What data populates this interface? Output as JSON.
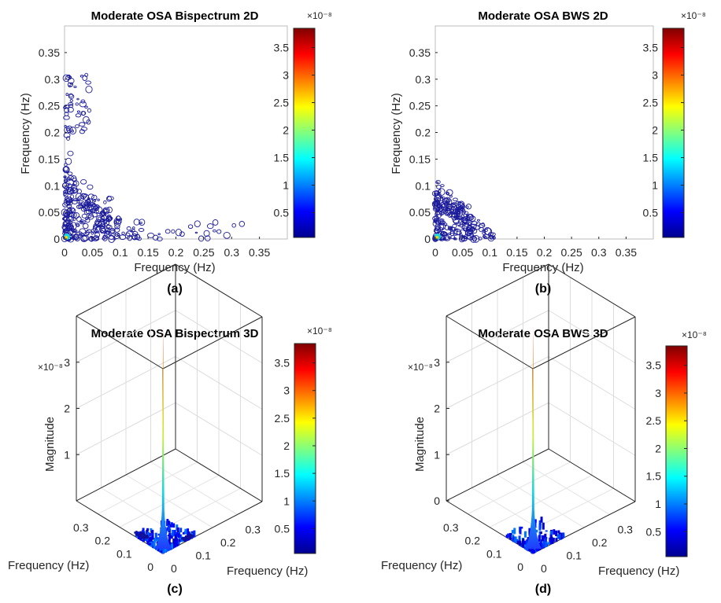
{
  "chart_data": [
    {
      "id": "a",
      "type": "heatmap",
      "variant": "contour-2d",
      "title": "Moderate OSA Bispectrum 2D",
      "caption": "(a)",
      "xlabel": "Frequency (Hz)",
      "ylabel": "Frequency (Hz)",
      "xlim": [
        0,
        0.4
      ],
      "ylim": [
        0,
        0.4
      ],
      "xticks": [
        "0",
        "0.05",
        "0.1",
        "0.15",
        "0.2",
        "0.25",
        "0.3",
        "0.35"
      ],
      "yticks": [
        "0",
        "0.05",
        "0.1",
        "0.15",
        "0.2",
        "0.25",
        "0.3",
        "0.35"
      ],
      "colorbar": {
        "ticks": [
          "0.5",
          "1",
          "1.5",
          "2",
          "2.5",
          "3",
          "3.5"
        ],
        "exponent": "×10⁻⁸",
        "range": [
          0.05,
          3.85
        ]
      },
      "regions": [
        {
          "shape": "corner",
          "x": [
            0,
            0.14
          ],
          "y": [
            0,
            0.135
          ],
          "density": "high"
        },
        {
          "shape": "strip",
          "x": [
            0,
            0.012
          ],
          "y": [
            0,
            0.315
          ],
          "density": "medium"
        },
        {
          "shape": "blob",
          "x": [
            0.008,
            0.045
          ],
          "y": [
            0.2,
            0.31
          ],
          "density": "low"
        },
        {
          "shape": "strip",
          "x": [
            0.03,
            0.32
          ],
          "y": [
            0,
            0.035
          ],
          "density": "low"
        }
      ]
    },
    {
      "id": "b",
      "type": "heatmap",
      "variant": "contour-2d",
      "title": "Moderate OSA BWS 2D",
      "caption": "(b)",
      "xlabel": "Frequency (Hz)",
      "ylabel": "Frequency (Hz)",
      "xlim": [
        0,
        0.4
      ],
      "ylim": [
        0,
        0.4
      ],
      "xticks": [
        "0",
        "0.05",
        "0.1",
        "0.15",
        "0.2",
        "0.25",
        "0.3",
        "0.35"
      ],
      "yticks": [
        "0",
        "0.05",
        "0.1",
        "0.15",
        "0.2",
        "0.25",
        "0.3",
        "0.35"
      ],
      "colorbar": {
        "ticks": [
          "0.5",
          "1",
          "1.5",
          "2",
          "2.5",
          "3",
          "3.5"
        ],
        "exponent": "×10⁻⁸",
        "range": [
          0.05,
          3.85
        ]
      },
      "regions": [
        {
          "shape": "corner",
          "x": [
            0,
            0.11
          ],
          "y": [
            0,
            0.11
          ],
          "density": "high"
        }
      ]
    },
    {
      "id": "c",
      "type": "heatmap",
      "variant": "surface-3d",
      "title": "Moderate OSA Bispectrum 3D",
      "caption": "(c)",
      "xlabel": "Frequency (Hz)",
      "ylabel": "Frequency (Hz)",
      "zlabel": "Magnitude",
      "z_exponent": "×10⁻⁸",
      "zticks": [
        "1",
        "2",
        "3"
      ],
      "xticks": [
        "0",
        "0.1",
        "0.2",
        "0.3"
      ],
      "yticks": [
        "0",
        "0.1",
        "0.2",
        "0.3"
      ],
      "zlim": [
        0,
        4
      ],
      "peak": {
        "x": 0,
        "y": 0,
        "z": 3.8
      },
      "colorbar": {
        "ticks": [
          "0.5",
          "1",
          "1.5",
          "2",
          "2.5",
          "3",
          "3.5"
        ],
        "exponent": "×10⁻⁸",
        "range": [
          0.05,
          3.85
        ]
      }
    },
    {
      "id": "d",
      "type": "heatmap",
      "variant": "surface-3d",
      "title": "Moderate OSA BWS 3D",
      "caption": "(d)",
      "xlabel": "Frequency (Hz)",
      "ylabel": "Frequency (Hz)",
      "zlabel": "Magnitude",
      "z_exponent": "×10⁻⁸",
      "zticks": [
        "0",
        "1",
        "2",
        "3"
      ],
      "xticks": [
        "0",
        "0.1",
        "0.2",
        "0.3"
      ],
      "yticks": [
        "0",
        "0.1",
        "0.2",
        "0.3"
      ],
      "zlim": [
        0,
        4
      ],
      "peak": {
        "x": 0,
        "y": 0,
        "z": 3.8
      },
      "colorbar": {
        "ticks": [
          "0.5",
          "1",
          "1.5",
          "2",
          "2.5",
          "3",
          "3.5"
        ],
        "exponent": "×10⁻⁸",
        "range": [
          0.05,
          3.85
        ]
      }
    }
  ]
}
